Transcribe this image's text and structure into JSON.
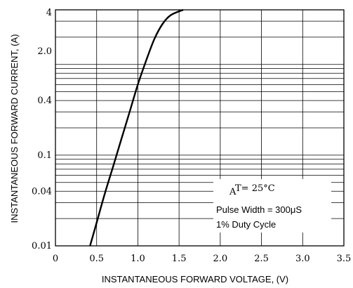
{
  "chart_data": {
    "type": "line",
    "xlabel": "INSTANTANEOUS FORWARD VOLTAGE, (V)",
    "ylabel": "INSTANTANEOUS FORWARD CURRENT, (A)",
    "xlim": [
      0,
      3.5
    ],
    "x_ticks": [
      "0",
      "0.5",
      "1.0",
      "1.5",
      "2.0",
      "2.5",
      "3.0",
      "3.5"
    ],
    "y_ticks": [
      "4",
      "2.0",
      "0.4",
      "0.1",
      "0.04",
      "0.01"
    ],
    "series": [
      {
        "x": [
          0.42,
          0.5,
          0.6,
          0.7,
          0.8,
          0.9,
          1.0,
          1.1,
          1.2,
          1.3,
          1.4,
          1.55
        ],
        "y": [
          0.01,
          0.018,
          0.038,
          0.075,
          0.15,
          0.3,
          0.6,
          1.1,
          1.9,
          2.8,
          3.5,
          4.0
        ]
      }
    ],
    "annotations": {
      "temp_sub": "A",
      "temp_text": "T= 25°C",
      "pulse": "Pulse Width = 300μS",
      "duty": "1%  Duty Cycle"
    },
    "grid": true,
    "line_color": "#000000"
  }
}
